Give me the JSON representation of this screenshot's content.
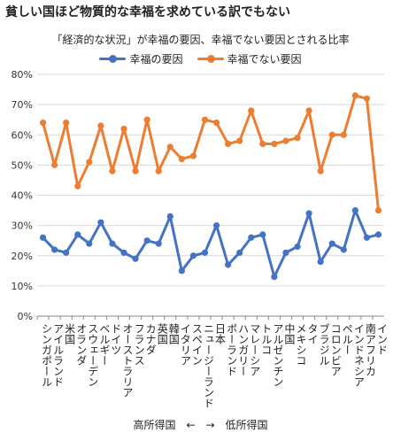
{
  "headline": "貧しい国ほど物質的な幸福を求めている訳でもない",
  "colors": {
    "series1": "#4472c4",
    "series2": "#ed7d31",
    "grid": "#d9d9d9",
    "axis": "#888888"
  },
  "chart_data": {
    "type": "line",
    "title": "「経済的な状況」が幸福の要因、幸福でない要因とされる比率",
    "xlabel": "高所得国　←　→　低所得国",
    "ylabel": "",
    "ylim": [
      0,
      80
    ],
    "y_ticks": [
      "0%",
      "10%",
      "20%",
      "30%",
      "40%",
      "50%",
      "60%",
      "70%",
      "80%"
    ],
    "grid": true,
    "legend_position": "top",
    "categories": [
      "シンガポール",
      "アイルランド",
      "米国",
      "オランダ",
      "スウェーデン",
      "ベルギー",
      "ドイツ",
      "オーストラリア",
      "フランス",
      "カナダ",
      "英国",
      "韓国",
      "イタリア",
      "スペイン",
      "ニュージーランド",
      "日本",
      "ポーランド",
      "ハンガリー",
      "マレーシア",
      "トルコ",
      "アルゼンチン",
      "中国",
      "メキシコ",
      "タイ",
      "ブラジル",
      "コロンビア",
      "ペルー",
      "インドネシア",
      "南アフリカ",
      "インド"
    ],
    "series": [
      {
        "name": "幸福の要因",
        "values": [
          26,
          22,
          21,
          27,
          24,
          31,
          24,
          21,
          19,
          25,
          24,
          33,
          15,
          20,
          21,
          30,
          17,
          21,
          26,
          27,
          13,
          21,
          23,
          34,
          18,
          24,
          22,
          35,
          26,
          27
        ]
      },
      {
        "name": "幸福でない要因",
        "values": [
          64,
          50,
          64,
          43,
          51,
          63,
          48,
          62,
          48,
          65,
          48,
          56,
          52,
          53,
          65,
          64,
          57,
          58,
          68,
          57,
          57,
          58,
          59,
          68,
          48,
          60,
          60,
          73,
          72,
          35
        ]
      }
    ]
  }
}
